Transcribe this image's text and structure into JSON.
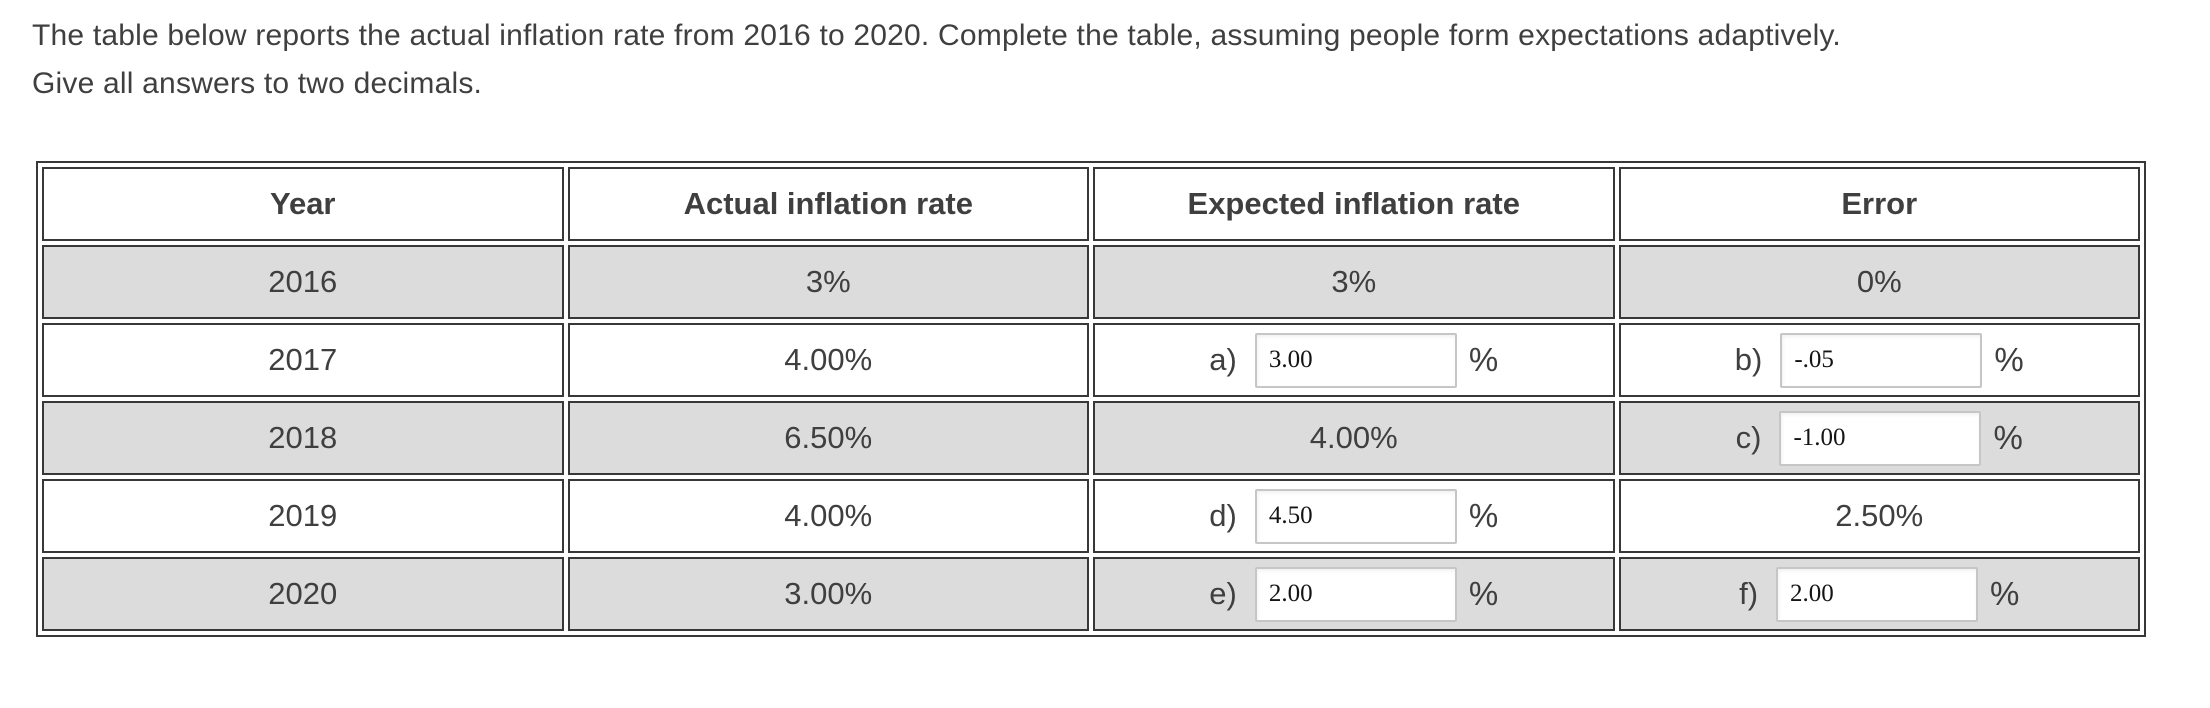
{
  "question": {
    "line1": "The table below reports the actual inflation rate from 2016 to 2020. Complete the table, assuming people form expectations adaptively.",
    "line2": "Give all answers to two decimals."
  },
  "table": {
    "headers": [
      "Year",
      "Actual inflation rate",
      "Expected inflation rate",
      "Error"
    ],
    "rows": [
      {
        "year": "2016",
        "actual": "3%",
        "shaded": true,
        "expected": {
          "type": "static",
          "value": "3%"
        },
        "error": {
          "type": "static",
          "value": "0%"
        }
      },
      {
        "year": "2017",
        "actual": "4.00%",
        "shaded": false,
        "expected": {
          "type": "input",
          "label": "a)",
          "value": "3.00",
          "suffix": "%"
        },
        "error": {
          "type": "input",
          "label": "b)",
          "value": "-.05",
          "suffix": "%"
        }
      },
      {
        "year": "2018",
        "actual": "6.50%",
        "shaded": true,
        "expected": {
          "type": "static",
          "value": "4.00%"
        },
        "error": {
          "type": "input",
          "label": "c)",
          "value": "-1.00",
          "suffix": "%"
        }
      },
      {
        "year": "2019",
        "actual": "4.00%",
        "shaded": false,
        "expected": {
          "type": "input",
          "label": "d)",
          "value": "4.50",
          "suffix": "%"
        },
        "error": {
          "type": "static",
          "value": "2.50%"
        }
      },
      {
        "year": "2020",
        "actual": "3.00%",
        "shaded": true,
        "expected": {
          "type": "input",
          "label": "e)",
          "value": "2.00",
          "suffix": "%"
        },
        "error": {
          "type": "input",
          "label": "f)",
          "value": "2.00",
          "suffix": "%"
        }
      }
    ]
  },
  "colors": {
    "text": "#3f3f3f",
    "table_border": "#383838",
    "shaded_row_bg": "#dcdcdc",
    "input_border": "#c6c6c6",
    "page_bg": "#ffffff"
  }
}
